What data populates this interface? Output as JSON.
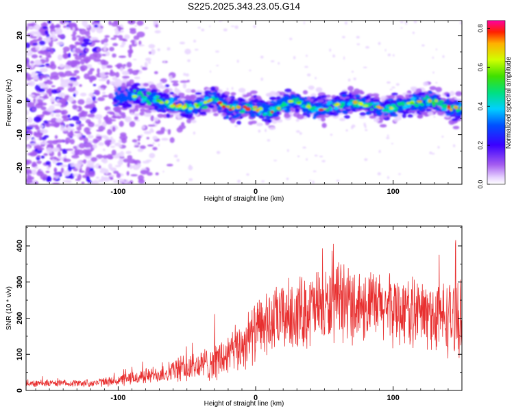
{
  "title": "S225.2025.343.23.05.G14",
  "chart_data": [
    {
      "type": "heatmap",
      "name": "spectrogram",
      "xlabel": "Height of straight line (km)",
      "ylabel": "Frequency (Hz)",
      "xlim": [
        -167,
        150
      ],
      "ylim": [
        -25,
        24.5
      ],
      "x_ticks": [
        -100,
        0,
        100
      ],
      "y_ticks": [
        -20,
        -10,
        0,
        10,
        20
      ],
      "colorbar": {
        "label": "Normalized spectral amplitude",
        "range": [
          0.0,
          0.84
        ],
        "ticks": [
          0.0,
          0.2,
          0.4,
          0.6,
          0.8
        ]
      },
      "signal_ridge": {
        "x": [
          -100,
          -90,
          -80,
          -70,
          -60,
          -50,
          -40,
          -30,
          -20,
          -10,
          0,
          10,
          20,
          30,
          40,
          50,
          60,
          70,
          80,
          90,
          100,
          110,
          120,
          130,
          140,
          150
        ],
        "frequency": [
          1,
          2,
          1,
          0,
          -1,
          -2,
          -1,
          1,
          -2,
          -2,
          -2,
          -3,
          -1,
          0,
          -2,
          -2,
          -1,
          0,
          -1,
          -2,
          -2,
          -1,
          0,
          0,
          -2,
          -2
        ]
      }
    },
    {
      "type": "line",
      "name": "snr",
      "xlabel": "Height of straight line (km)",
      "ylabel": "SNR (10 * v/v)",
      "xlim": [
        -167,
        150
      ],
      "ylim": [
        0,
        455
      ],
      "x_ticks": [
        -100,
        0,
        100
      ],
      "y_ticks": [
        0,
        100,
        200,
        300,
        400
      ],
      "color": "#e83030",
      "envelope": {
        "x": [
          -167,
          -140,
          -120,
          -105,
          -95,
          -80,
          -70,
          -60,
          -50,
          -40,
          -30,
          -20,
          -10,
          0,
          10,
          20,
          30,
          40,
          50,
          60,
          70,
          80,
          90,
          100,
          110,
          120,
          130,
          140,
          150
        ],
        "mean": [
          20,
          20,
          20,
          25,
          30,
          40,
          45,
          55,
          60,
          70,
          80,
          95,
          125,
          165,
          185,
          205,
          215,
          225,
          230,
          240,
          240,
          235,
          230,
          225,
          220,
          215,
          205,
          200,
          200
        ],
        "spread": [
          12,
          10,
          12,
          15,
          20,
          25,
          28,
          35,
          45,
          50,
          60,
          70,
          80,
          95,
          100,
          110,
          115,
          120,
          120,
          120,
          120,
          115,
          110,
          110,
          110,
          110,
          115,
          120,
          120
        ]
      }
    }
  ]
}
